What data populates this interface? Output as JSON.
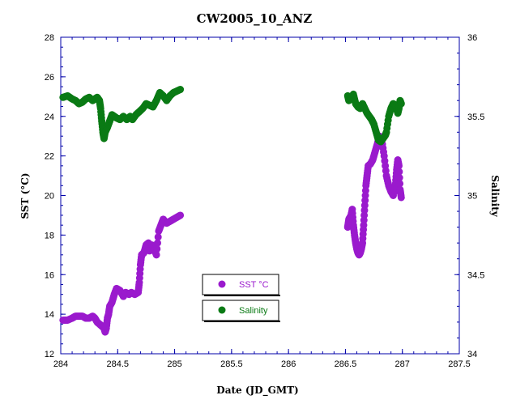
{
  "chart_data": {
    "type": "scatter",
    "title": "CW2005_10_ANZ",
    "xlabel": "Date (JD_GMT)",
    "ylabel": "SST (°C)",
    "ylabel_right": "Salinity",
    "xlim": [
      284,
      287.5
    ],
    "ylim": [
      12,
      28
    ],
    "ylim_right": [
      34,
      36
    ],
    "x_ticks": [
      "284",
      "284.5",
      "285",
      "285.5",
      "286",
      "286.5",
      "287",
      "287.5"
    ],
    "y_ticks": [
      "12",
      "14",
      "16",
      "18",
      "20",
      "22",
      "24",
      "26",
      "28"
    ],
    "y_ticks_right": [
      "34",
      "34.5",
      "35",
      "35.5",
      "36"
    ],
    "colors": {
      "axes": "#0000aa",
      "sst": "#9a1acd",
      "salinity": "#0a7a14"
    },
    "legend": [
      {
        "label": "SST °C",
        "color": "#9a1acd"
      },
      {
        "label": "Salinity",
        "color": "#0a7a14"
      }
    ],
    "series": [
      {
        "name": "SST °C",
        "axis": "left",
        "points": [
          [
            284.02,
            13.7
          ],
          [
            284.06,
            13.7
          ],
          [
            284.1,
            13.8
          ],
          [
            284.13,
            13.9
          ],
          [
            284.16,
            13.9
          ],
          [
            284.19,
            13.9
          ],
          [
            284.22,
            13.8
          ],
          [
            284.25,
            13.8
          ],
          [
            284.28,
            13.9
          ],
          [
            284.3,
            13.8
          ],
          [
            284.32,
            13.6
          ],
          [
            284.34,
            13.5
          ],
          [
            284.36,
            13.4
          ],
          [
            284.38,
            13.3
          ],
          [
            284.39,
            13.1
          ],
          [
            284.4,
            13.3
          ],
          [
            284.41,
            13.8
          ],
          [
            284.42,
            14.0
          ],
          [
            284.43,
            14.4
          ],
          [
            284.45,
            14.6
          ],
          [
            284.47,
            15.0
          ],
          [
            284.49,
            15.3
          ],
          [
            284.52,
            15.2
          ],
          [
            284.55,
            14.9
          ],
          [
            284.57,
            15.1
          ],
          [
            284.6,
            15.0
          ],
          [
            284.62,
            15.1
          ],
          [
            284.65,
            15.0
          ],
          [
            284.68,
            15.1
          ],
          [
            284.69,
            15.6
          ],
          [
            284.7,
            16.5
          ],
          [
            284.71,
            17.0
          ],
          [
            284.73,
            17.1
          ],
          [
            284.75,
            17.5
          ],
          [
            284.77,
            17.6
          ],
          [
            284.78,
            17.2
          ],
          [
            284.8,
            17.5
          ],
          [
            284.82,
            17.3
          ],
          [
            284.84,
            17.0
          ],
          [
            284.86,
            18.2
          ],
          [
            284.88,
            18.5
          ],
          [
            284.9,
            18.8
          ],
          [
            284.93,
            18.6
          ],
          [
            284.96,
            18.7
          ],
          [
            284.99,
            18.8
          ],
          [
            285.02,
            18.9
          ],
          [
            285.05,
            19.0
          ],
          [
            286.52,
            18.4
          ],
          [
            286.53,
            18.8
          ],
          [
            286.55,
            19.0
          ],
          [
            286.56,
            19.3
          ],
          [
            286.57,
            18.5
          ],
          [
            286.58,
            18.0
          ],
          [
            286.59,
            17.6
          ],
          [
            286.6,
            17.3
          ],
          [
            286.61,
            17.1
          ],
          [
            286.62,
            17.0
          ],
          [
            286.63,
            17.1
          ],
          [
            286.64,
            17.3
          ],
          [
            286.65,
            17.6
          ],
          [
            286.66,
            18.5
          ],
          [
            286.67,
            19.5
          ],
          [
            286.68,
            20.5
          ],
          [
            286.69,
            21.0
          ],
          [
            286.7,
            21.5
          ],
          [
            286.72,
            21.6
          ],
          [
            286.74,
            21.8
          ],
          [
            286.76,
            22.2
          ],
          [
            286.78,
            22.6
          ],
          [
            286.8,
            23.0
          ],
          [
            286.82,
            22.8
          ],
          [
            286.84,
            22.0
          ],
          [
            286.86,
            21.0
          ],
          [
            286.88,
            20.5
          ],
          [
            286.9,
            20.2
          ],
          [
            286.92,
            20.0
          ],
          [
            286.94,
            20.6
          ],
          [
            286.95,
            21.3
          ],
          [
            286.96,
            21.8
          ],
          [
            286.97,
            21.5
          ],
          [
            286.98,
            20.3
          ],
          [
            286.99,
            19.9
          ]
        ]
      },
      {
        "name": "Salinity",
        "axis": "right",
        "points": [
          [
            284.02,
            35.62
          ],
          [
            284.06,
            35.63
          ],
          [
            284.1,
            35.61
          ],
          [
            284.13,
            35.6
          ],
          [
            284.16,
            35.58
          ],
          [
            284.19,
            35.59
          ],
          [
            284.22,
            35.61
          ],
          [
            284.25,
            35.62
          ],
          [
            284.28,
            35.6
          ],
          [
            284.3,
            35.61
          ],
          [
            284.32,
            35.62
          ],
          [
            284.34,
            35.6
          ],
          [
            284.35,
            35.55
          ],
          [
            284.36,
            35.47
          ],
          [
            284.37,
            35.4
          ],
          [
            284.38,
            35.36
          ],
          [
            284.39,
            35.4
          ],
          [
            284.41,
            35.43
          ],
          [
            284.43,
            35.47
          ],
          [
            284.45,
            35.51
          ],
          [
            284.47,
            35.5
          ],
          [
            284.49,
            35.49
          ],
          [
            284.52,
            35.48
          ],
          [
            284.55,
            35.5
          ],
          [
            284.58,
            35.48
          ],
          [
            284.61,
            35.5
          ],
          [
            284.63,
            35.48
          ],
          [
            284.66,
            35.51
          ],
          [
            284.69,
            35.53
          ],
          [
            284.72,
            35.55
          ],
          [
            284.75,
            35.58
          ],
          [
            284.78,
            35.57
          ],
          [
            284.81,
            35.56
          ],
          [
            284.84,
            35.6
          ],
          [
            284.87,
            35.65
          ],
          [
            284.9,
            35.63
          ],
          [
            284.93,
            35.6
          ],
          [
            284.96,
            35.63
          ],
          [
            284.99,
            35.65
          ],
          [
            285.02,
            35.66
          ],
          [
            285.05,
            35.67
          ],
          [
            286.52,
            35.63
          ],
          [
            286.53,
            35.6
          ],
          [
            286.55,
            35.61
          ],
          [
            286.57,
            35.64
          ],
          [
            286.59,
            35.58
          ],
          [
            286.61,
            35.56
          ],
          [
            286.63,
            35.55
          ],
          [
            286.65,
            35.58
          ],
          [
            286.67,
            35.55
          ],
          [
            286.69,
            35.52
          ],
          [
            286.71,
            35.5
          ],
          [
            286.73,
            35.48
          ],
          [
            286.75,
            35.45
          ],
          [
            286.77,
            35.4
          ],
          [
            286.79,
            35.35
          ],
          [
            286.81,
            35.34
          ],
          [
            286.83,
            35.36
          ],
          [
            286.85,
            35.38
          ],
          [
            286.86,
            35.4
          ],
          [
            286.88,
            35.5
          ],
          [
            286.9,
            35.55
          ],
          [
            286.92,
            35.58
          ],
          [
            286.94,
            35.57
          ],
          [
            286.96,
            35.52
          ],
          [
            286.97,
            35.55
          ],
          [
            286.98,
            35.6
          ],
          [
            286.99,
            35.58
          ]
        ]
      }
    ]
  }
}
